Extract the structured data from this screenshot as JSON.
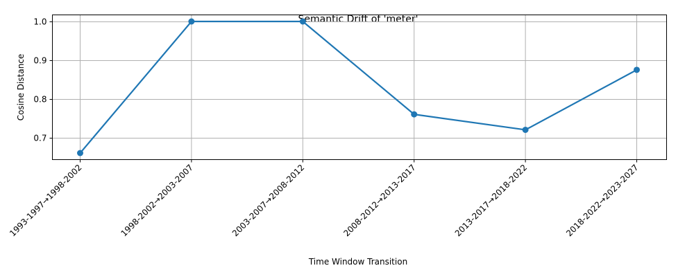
{
  "chart_data": {
    "type": "line",
    "title": "Semantic Drift of 'meter'",
    "xlabel": "Time Window Transition",
    "ylabel": "Cosine Distance",
    "categories": [
      "1993-1997→1998-2002",
      "1998-2002→2003-2007",
      "2003-2007→2008-2012",
      "2008-2012→2013-2017",
      "2013-2017→2018-2022",
      "2018-2022→2023-2027"
    ],
    "series": [
      {
        "values": [
          0.66,
          1.0,
          1.0,
          0.76,
          0.72,
          0.875
        ]
      }
    ],
    "yticks": [
      "0.7",
      "0.8",
      "0.9",
      "1.0"
    ],
    "ylim": [
      0.643,
      1.017
    ],
    "grid": true,
    "marker": "circle",
    "color": "#1f77b4"
  }
}
